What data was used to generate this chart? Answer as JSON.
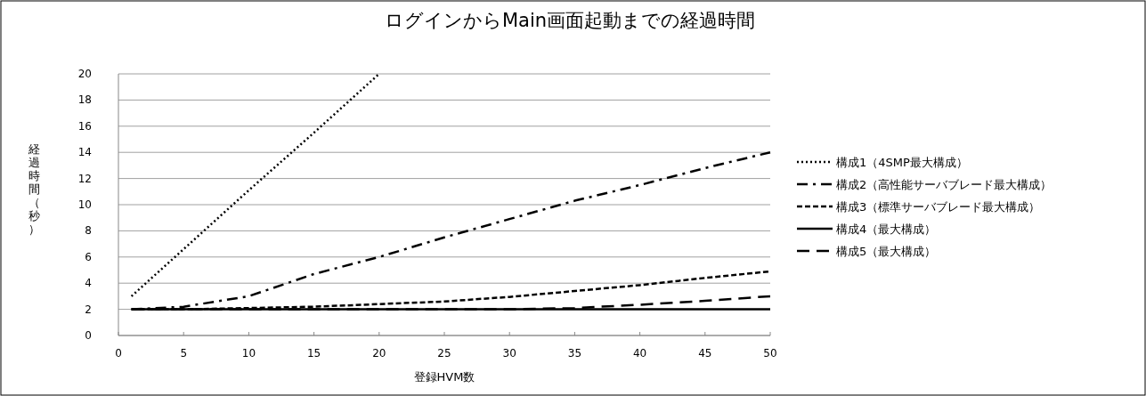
{
  "chart_data": {
    "type": "line",
    "title": "ログインからMain画面起動までの経過時間",
    "xlabel": "登録HVM数",
    "ylabel": "経過時間（秒）",
    "xlim": [
      0,
      50
    ],
    "xticks": [
      0,
      5,
      10,
      15,
      20,
      25,
      30,
      35,
      40,
      45,
      50
    ],
    "ylim": [
      0,
      20
    ],
    "yticks": [
      0,
      2,
      4,
      6,
      8,
      10,
      12,
      14,
      16,
      18,
      20
    ],
    "grid": "y",
    "legend": "right",
    "marker": "none",
    "series": [
      {
        "name": "構成1（4SMP最大構成）",
        "color": "#000000",
        "line_style": "dotted",
        "x": [
          1,
          5,
          10,
          15,
          20
        ],
        "values": [
          3,
          6.6,
          11.1,
          15.5,
          20
        ]
      },
      {
        "name": "構成2（高性能サーバブレード最大構成）",
        "color": "#000000",
        "line_style": "dashdot",
        "x": [
          1,
          5,
          10,
          15,
          20,
          25,
          30,
          35,
          40,
          45,
          50
        ],
        "values": [
          2,
          2.2,
          3,
          4.7,
          6,
          7.5,
          8.9,
          10.3,
          11.5,
          12.8,
          14
        ]
      },
      {
        "name": "構成3（標準サーバブレード最大構成）",
        "color": "#000000",
        "line_style": "dashed",
        "x": [
          1,
          5,
          10,
          15,
          20,
          25,
          30,
          35,
          40,
          45,
          50
        ],
        "values": [
          2,
          2,
          2.1,
          2.2,
          2.4,
          2.6,
          2.95,
          3.4,
          3.85,
          4.4,
          4.9
        ]
      },
      {
        "name": "構成4（最大構成）",
        "color": "#000000",
        "line_style": "solid",
        "x": [
          1,
          50
        ],
        "values": [
          2,
          2
        ]
      },
      {
        "name": "構成5（最大構成）",
        "color": "#000000",
        "line_style": "longdash",
        "x": [
          1,
          10,
          20,
          30,
          35,
          40,
          45,
          50
        ],
        "values": [
          2,
          2,
          2,
          2,
          2.1,
          2.35,
          2.65,
          3
        ]
      }
    ]
  }
}
